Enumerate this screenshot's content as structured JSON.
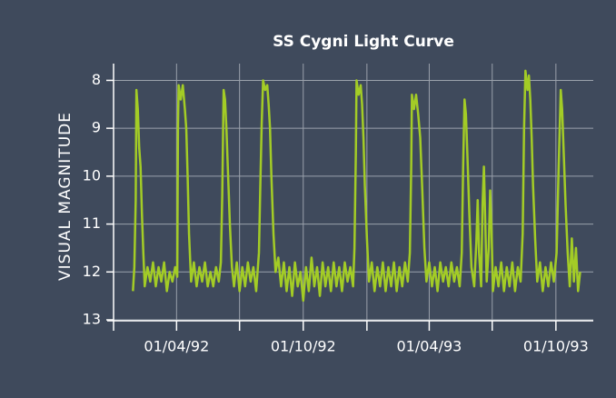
{
  "chart_data": {
    "type": "line",
    "title": "SS Cygni Light Curve",
    "y_label": "VISUAL MAGNITUDE",
    "color": "#a3cc26",
    "grid": true,
    "ylim": [
      13,
      7.65
    ],
    "yticks": [
      8,
      9,
      10,
      11,
      12,
      13
    ],
    "xlim": [
      "1992-01-01",
      "1993-11-24"
    ],
    "xticks": [
      {
        "value": "1992-01-01",
        "label": null
      },
      {
        "value": "1992-04-01",
        "label": "01/04/92"
      },
      {
        "value": "1992-07-01",
        "label": null
      },
      {
        "value": "1992-10-01",
        "label": "01/10/92"
      },
      {
        "value": "1993-01-01",
        "label": null
      },
      {
        "value": "1993-04-01",
        "label": "01/04/93"
      },
      {
        "value": "1993-07-01",
        "label": null
      },
      {
        "value": "1993-10-01",
        "label": "01/10/93"
      }
    ],
    "x": [
      "1992-01-29",
      "1992-01-31",
      "1992-02-02",
      "1992-02-03",
      "1992-02-05",
      "1992-02-07",
      "1992-02-09",
      "1992-02-11",
      "1992-02-13",
      "1992-02-15",
      "1992-02-19",
      "1992-02-23",
      "1992-02-27",
      "1992-03-02",
      "1992-03-06",
      "1992-03-10",
      "1992-03-14",
      "1992-03-18",
      "1992-03-22",
      "1992-03-26",
      "1992-03-30",
      "1992-04-02",
      "1992-04-03",
      "1992-04-04",
      "1992-04-07",
      "1992-04-10",
      "1992-04-13",
      "1992-04-15",
      "1992-04-17",
      "1992-04-19",
      "1992-04-22",
      "1992-04-26",
      "1992-04-30",
      "1992-05-04",
      "1992-05-08",
      "1992-05-12",
      "1992-05-16",
      "1992-05-20",
      "1992-05-24",
      "1992-05-28",
      "1992-06-01",
      "1992-06-04",
      "1992-06-06",
      "1992-06-08",
      "1992-06-10",
      "1992-06-12",
      "1992-06-14",
      "1992-06-17",
      "1992-06-20",
      "1992-06-23",
      "1992-06-27",
      "1992-07-01",
      "1992-07-05",
      "1992-07-09",
      "1992-07-13",
      "1992-07-17",
      "1992-07-21",
      "1992-07-25",
      "1992-07-29",
      "1992-07-31",
      "1992-08-02",
      "1992-08-04",
      "1992-08-07",
      "1992-08-10",
      "1992-08-12",
      "1992-08-14",
      "1992-08-16",
      "1992-08-19",
      "1992-08-22",
      "1992-08-26",
      "1992-08-30",
      "1992-09-03",
      "1992-09-07",
      "1992-09-11",
      "1992-09-15",
      "1992-09-19",
      "1992-09-23",
      "1992-09-27",
      "1992-10-01",
      "1992-10-05",
      "1992-10-09",
      "1992-10-13",
      "1992-10-17",
      "1992-10-21",
      "1992-10-25",
      "1992-10-29",
      "1992-11-02",
      "1992-11-06",
      "1992-11-10",
      "1992-11-14",
      "1992-11-18",
      "1992-11-22",
      "1992-11-26",
      "1992-11-30",
      "1992-12-04",
      "1992-12-08",
      "1992-12-12",
      "1992-12-14",
      "1992-12-16",
      "1992-12-17",
      "1992-12-20",
      "1992-12-23",
      "1992-12-25",
      "1992-12-27",
      "1992-12-29",
      "1993-01-01",
      "1993-01-04",
      "1993-01-08",
      "1993-01-12",
      "1993-01-16",
      "1993-01-20",
      "1993-01-24",
      "1993-01-28",
      "1993-02-01",
      "1993-02-05",
      "1993-02-09",
      "1993-02-13",
      "1993-02-17",
      "1993-02-21",
      "1993-02-25",
      "1993-03-01",
      "1993-03-04",
      "1993-03-06",
      "1993-03-07",
      "1993-03-10",
      "1993-03-13",
      "1993-03-16",
      "1993-03-19",
      "1993-03-22",
      "1993-03-25",
      "1993-03-28",
      "1993-04-01",
      "1993-04-05",
      "1993-04-09",
      "1993-04-13",
      "1993-04-17",
      "1993-04-21",
      "1993-04-25",
      "1993-04-29",
      "1993-05-03",
      "1993-05-07",
      "1993-05-11",
      "1993-05-15",
      "1993-05-18",
      "1993-05-20",
      "1993-05-22",
      "1993-05-24",
      "1993-05-26",
      "1993-05-29",
      "1993-06-01",
      "1993-06-05",
      "1993-06-08",
      "1993-06-10",
      "1993-06-12",
      "1993-06-15",
      "1993-06-17",
      "1993-06-19",
      "1993-06-21",
      "1993-06-23",
      "1993-06-26",
      "1993-06-28",
      "1993-06-30",
      "1993-07-02",
      "1993-07-06",
      "1993-07-10",
      "1993-07-14",
      "1993-07-18",
      "1993-07-22",
      "1993-07-26",
      "1993-07-30",
      "1993-08-03",
      "1993-08-07",
      "1993-08-11",
      "1993-08-14",
      "1993-08-16",
      "1993-08-18",
      "1993-08-21",
      "1993-08-23",
      "1993-08-25",
      "1993-08-27",
      "1993-08-29",
      "1993-09-01",
      "1993-09-04",
      "1993-09-08",
      "1993-09-12",
      "1993-09-16",
      "1993-09-20",
      "1993-09-24",
      "1993-09-28",
      "1993-10-02",
      "1993-10-05",
      "1993-10-08",
      "1993-10-10",
      "1993-10-12",
      "1993-10-15",
      "1993-10-18",
      "1993-10-21",
      "1993-10-24",
      "1993-10-27",
      "1993-10-30",
      "1993-11-02",
      "1993-11-05"
    ],
    "values": [
      12.4,
      11.9,
      10.5,
      8.2,
      8.6,
      9.4,
      9.8,
      10.8,
      11.6,
      12.3,
      11.9,
      12.2,
      11.8,
      12.3,
      11.9,
      12.2,
      11.8,
      12.4,
      12.0,
      12.2,
      11.9,
      12.1,
      9.0,
      8.1,
      8.4,
      8.1,
      8.6,
      9.0,
      10.0,
      11.2,
      12.2,
      11.8,
      12.3,
      11.9,
      12.2,
      11.8,
      12.3,
      12.0,
      12.3,
      11.9,
      12.2,
      11.8,
      10.4,
      8.2,
      8.4,
      9.0,
      9.8,
      11.0,
      11.9,
      12.3,
      11.8,
      12.4,
      11.9,
      12.3,
      11.8,
      12.2,
      11.9,
      12.4,
      11.6,
      10.2,
      8.9,
      8.0,
      8.2,
      8.1,
      8.5,
      9.0,
      10.0,
      11.2,
      12.0,
      11.7,
      12.3,
      11.8,
      12.4,
      11.9,
      12.5,
      11.8,
      12.3,
      12.0,
      12.6,
      11.9,
      12.4,
      11.7,
      12.3,
      11.9,
      12.5,
      11.8,
      12.3,
      11.9,
      12.4,
      11.8,
      12.3,
      11.9,
      12.4,
      11.8,
      12.2,
      11.9,
      12.3,
      11.5,
      9.5,
      8.0,
      8.3,
      8.1,
      8.5,
      9.2,
      10.2,
      11.3,
      12.2,
      11.8,
      12.4,
      11.9,
      12.3,
      11.8,
      12.4,
      11.9,
      12.3,
      11.8,
      12.4,
      11.9,
      12.3,
      11.8,
      12.2,
      11.6,
      9.8,
      8.3,
      8.6,
      8.3,
      8.7,
      9.2,
      10.3,
      11.5,
      12.2,
      11.8,
      12.3,
      11.9,
      12.4,
      11.8,
      12.2,
      11.9,
      12.3,
      11.8,
      12.2,
      11.9,
      12.3,
      11.6,
      9.8,
      8.4,
      8.7,
      9.5,
      10.8,
      11.9,
      12.3,
      11.4,
      10.5,
      11.6,
      12.3,
      10.6,
      9.8,
      11.0,
      12.2,
      11.5,
      10.3,
      11.1,
      12.4,
      11.9,
      12.3,
      11.8,
      12.4,
      11.9,
      12.3,
      11.8,
      12.4,
      11.9,
      12.2,
      11.2,
      9.0,
      7.8,
      8.2,
      7.9,
      8.4,
      9.2,
      10.2,
      11.3,
      12.2,
      11.8,
      12.4,
      11.9,
      12.3,
      11.8,
      12.2,
      11.6,
      9.8,
      8.2,
      8.6,
      9.4,
      10.6,
      11.6,
      12.3,
      11.3,
      12.2,
      11.5,
      12.4,
      12.0
    ]
  }
}
